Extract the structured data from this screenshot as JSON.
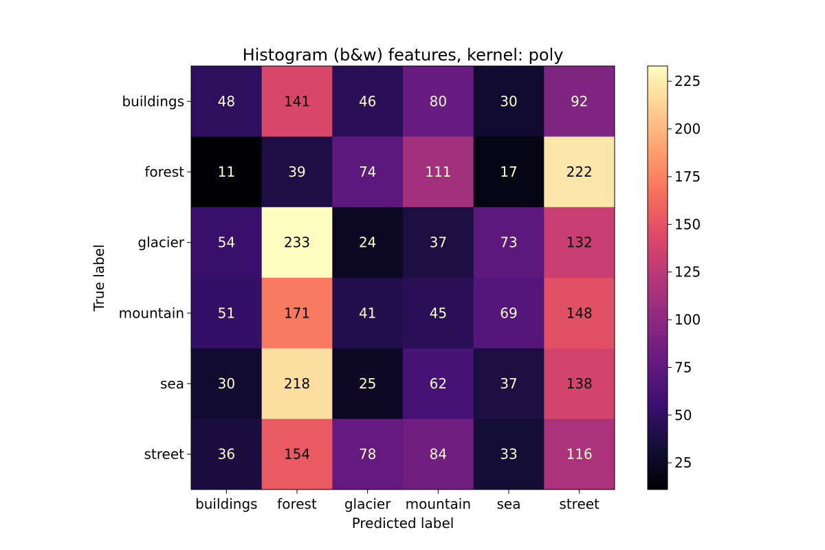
{
  "chart_data": {
    "type": "heatmap",
    "title": "Histogram (b&w) features, kernel: poly",
    "xlabel": "Predicted label",
    "ylabel": "True label",
    "x_categories": [
      "buildings",
      "forest",
      "glacier",
      "mountain",
      "sea",
      "street"
    ],
    "y_categories": [
      "buildings",
      "forest",
      "glacier",
      "mountain",
      "sea",
      "street"
    ],
    "values": [
      [
        48,
        141,
        46,
        80,
        30,
        92
      ],
      [
        11,
        39,
        74,
        111,
        17,
        222
      ],
      [
        54,
        233,
        24,
        37,
        73,
        132
      ],
      [
        51,
        171,
        41,
        45,
        69,
        148
      ],
      [
        30,
        218,
        25,
        62,
        37,
        138
      ],
      [
        36,
        154,
        78,
        84,
        33,
        116
      ]
    ],
    "colormap": "magma",
    "value_range": [
      11,
      233
    ],
    "colorbar_ticks": [
      25,
      50,
      75,
      100,
      125,
      150,
      175,
      200,
      225
    ],
    "text_color_light": "#fffdd0",
    "text_color_dark": "#000000"
  }
}
